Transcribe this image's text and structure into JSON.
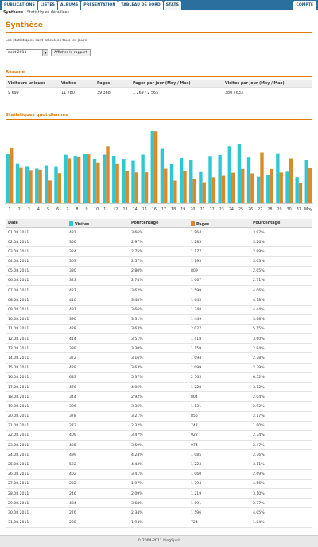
{
  "nav": {
    "tabs": [
      "PUBLICATIONS",
      "LISTES",
      "ALBUMS",
      "PRÉSENTATION",
      "TABLEAU DE BORD",
      "STATS"
    ],
    "account": "COMPTE"
  },
  "subnav": {
    "synthese": "Synthèse",
    "details": "Statistiques détaillées"
  },
  "page": {
    "title": "Synthèse",
    "intro": "Les statistiques sont calculées tous les jours.",
    "month_value": "août 2011",
    "report_button": "Afficher le rapport"
  },
  "summary": {
    "heading": "Résumé",
    "headers": [
      "Visiteurs uniques",
      "Visites",
      "Pages",
      "Pages par jour (Moy / Max)",
      "Visites par jour (Moy / Max)"
    ],
    "values": [
      "9 699",
      "11 780",
      "39 368",
      "1 269 / 2 565",
      "380 / 633"
    ]
  },
  "chart_section": {
    "heading": "Statistiques quotidiennes"
  },
  "colors": {
    "visits": "#2ec8d4",
    "pages": "#d98a2b",
    "accent": "#e07b00",
    "nav": "#2a6f9e"
  },
  "chart_data": {
    "type": "bar",
    "categories": [
      "1",
      "2",
      "3",
      "4",
      "5",
      "6",
      "7",
      "8",
      "9",
      "10",
      "11",
      "12",
      "13",
      "14",
      "15",
      "16",
      "17",
      "18",
      "19",
      "20",
      "21",
      "22",
      "23",
      "24",
      "25",
      "26",
      "27",
      "28",
      "29",
      "30",
      "31",
      "Moy"
    ],
    "series": [
      {
        "name": "Visites",
        "values": [
          431,
          350,
          324,
          303,
          330,
          323,
          427,
          410,
          431,
          390,
          428,
          414,
          389,
          372,
          428,
          633,
          476,
          344,
          396,
          378,
          273,
          409,
          425,
          499,
          522,
          402,
          232,
          246,
          434,
          276,
          228,
          380
        ]
      },
      {
        "name": "Pages",
        "values": [
          1964,
          1283,
          1177,
          1193,
          809,
          1067,
          1599,
          1645,
          1748,
          1449,
          2027,
          1418,
          1159,
          1094,
          1099,
          2565,
          1228,
          804,
          1131,
          855,
          747,
          922,
          974,
          1085,
          1223,
          1060,
          1794,
          1219,
          1091,
          1596,
          724,
          1269
        ]
      }
    ],
    "ylim_visits": [
      0,
      640
    ],
    "ylim_pages": [
      0,
      2600
    ]
  },
  "daily": {
    "headers": [
      "Date",
      "Visites",
      "Pourcentage",
      "Pages",
      "Pourcentage"
    ],
    "rows": [
      [
        "01.08.2011",
        "431",
        "3.66%",
        "1 964",
        "3.97%"
      ],
      [
        "02.08.2011",
        "350",
        "2.97%",
        "1 283",
        "3.26%"
      ],
      [
        "03.08.2011",
        "324",
        "2.75%",
        "1 177",
        "2.99%"
      ],
      [
        "04.08.2011",
        "303",
        "2.57%",
        "1 193",
        "3.03%"
      ],
      [
        "05.08.2011",
        "330",
        "2.80%",
        "809",
        "2.05%"
      ],
      [
        "06.08.2011",
        "323",
        "2.74%",
        "1 067",
        "2.71%"
      ],
      [
        "07.08.2011",
        "427",
        "3.62%",
        "1 599",
        "4.06%"
      ],
      [
        "08.08.2011",
        "410",
        "3.48%",
        "1 645",
        "4.18%"
      ],
      [
        "09.08.2011",
        "431",
        "3.66%",
        "1 748",
        "4.44%"
      ],
      [
        "10.08.2011",
        "390",
        "3.31%",
        "1 449",
        "3.68%"
      ],
      [
        "11.08.2011",
        "428",
        "3.63%",
        "2 027",
        "5.15%"
      ],
      [
        "12.08.2011",
        "414",
        "3.51%",
        "1 418",
        "3.60%"
      ],
      [
        "13.08.2011",
        "389",
        "3.30%",
        "1 159",
        "2.94%"
      ],
      [
        "14.08.2011",
        "372",
        "3.16%",
        "1 094",
        "2.78%"
      ],
      [
        "15.08.2011",
        "428",
        "3.63%",
        "1 099",
        "2.79%"
      ],
      [
        "16.08.2011",
        "633",
        "5.37%",
        "2 565",
        "6.52%"
      ],
      [
        "17.08.2011",
        "476",
        "4.06%",
        "1 228",
        "3.12%"
      ],
      [
        "18.08.2011",
        "344",
        "2.92%",
        "804",
        "2.04%"
      ],
      [
        "19.08.2011",
        "396",
        "3.36%",
        "1 131",
        "2.92%"
      ],
      [
        "20.08.2011",
        "378",
        "3.21%",
        "855",
        "2.17%"
      ],
      [
        "21.08.2011",
        "273",
        "2.32%",
        "747",
        "1.90%"
      ],
      [
        "22.08.2011",
        "409",
        "3.47%",
        "922",
        "2.34%"
      ],
      [
        "23.08.2011",
        "425",
        "3.59%",
        "974",
        "2.47%"
      ],
      [
        "24.08.2011",
        "499",
        "4.24%",
        "1 085",
        "2.76%"
      ],
      [
        "25.08.2011",
        "522",
        "4.43%",
        "1 223",
        "3.11%"
      ],
      [
        "26.08.2011",
        "402",
        "3.41%",
        "1 060",
        "2.69%"
      ],
      [
        "27.08.2011",
        "232",
        "1.97%",
        "1 794",
        "4.56%"
      ],
      [
        "28.08.2011",
        "246",
        "2.09%",
        "1 219",
        "3.10%"
      ],
      [
        "29.08.2011",
        "434",
        "3.68%",
        "1 091",
        "2.77%"
      ],
      [
        "30.08.2011",
        "276",
        "2.34%",
        "1 596",
        "4.05%"
      ],
      [
        "31.08.2011",
        "228",
        "1.94%",
        "724",
        "1.84%"
      ]
    ]
  },
  "footer": {
    "text": "© 2004-2011 blogSpirit"
  }
}
